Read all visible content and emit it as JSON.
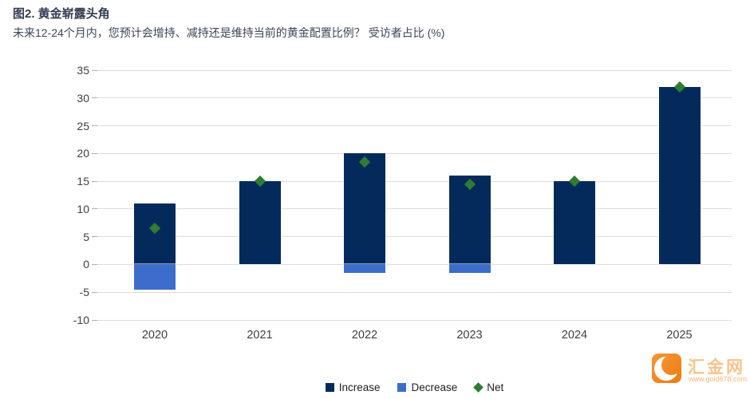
{
  "chart_data": {
    "type": "bar",
    "stacked": true,
    "title": "图2. 黄金崭露头角",
    "subtitle": "未来12-24个月内，您预计会增持、减持还是维持当前的黄金配置比例？ 受访者占比 (%)",
    "categories": [
      "2020",
      "2021",
      "2022",
      "2023",
      "2024",
      "2025"
    ],
    "series": [
      {
        "name": "Increase",
        "kind": "bar",
        "color": "#042A5C",
        "values": [
          11,
          15,
          20,
          16,
          15,
          32
        ]
      },
      {
        "name": "Decrease",
        "kind": "bar",
        "color": "#3D6DCA",
        "values": [
          -4.5,
          0,
          -1.5,
          -1.5,
          0,
          0
        ]
      },
      {
        "name": "Net",
        "kind": "diamond",
        "color": "#2E7D32",
        "values": [
          6.5,
          15,
          18.5,
          14.5,
          15,
          32
        ]
      }
    ],
    "ylim": [
      -10,
      35
    ],
    "yticks": [
      35,
      30,
      25,
      20,
      15,
      10,
      5,
      0,
      -5,
      -10
    ],
    "grid": "horizontal",
    "grid_color": "#DCDCDC",
    "legend_position": "bottom-center"
  },
  "watermark": {
    "site_name": "汇金网",
    "site_url": "www.gold678.com",
    "brand_color": "#F08200"
  }
}
